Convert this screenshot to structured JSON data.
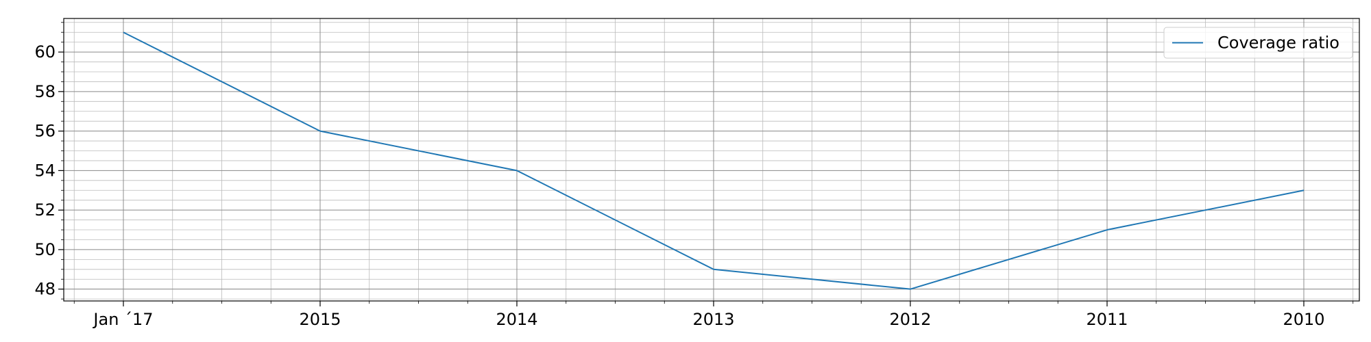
{
  "chart_data": {
    "type": "line",
    "title": "",
    "xlabel": "",
    "ylabel": "",
    "categories": [
      "Jan ´17",
      "2015",
      "2014",
      "2013",
      "2012",
      "2011",
      "2010"
    ],
    "series": [
      {
        "name": "Coverage ratio",
        "values": [
          61,
          56,
          54,
          49,
          48,
          51,
          53
        ],
        "color": "#1f77b4"
      }
    ],
    "ylim": [
      47.4,
      61.7
    ],
    "y_ticks": [
      48,
      50,
      52,
      54,
      56,
      58,
      60
    ],
    "y_minor_step": 0.5,
    "x_minor_per_major": 4,
    "grid": true,
    "legend": {
      "position": "top-right",
      "entries": [
        "Coverage ratio"
      ]
    }
  }
}
